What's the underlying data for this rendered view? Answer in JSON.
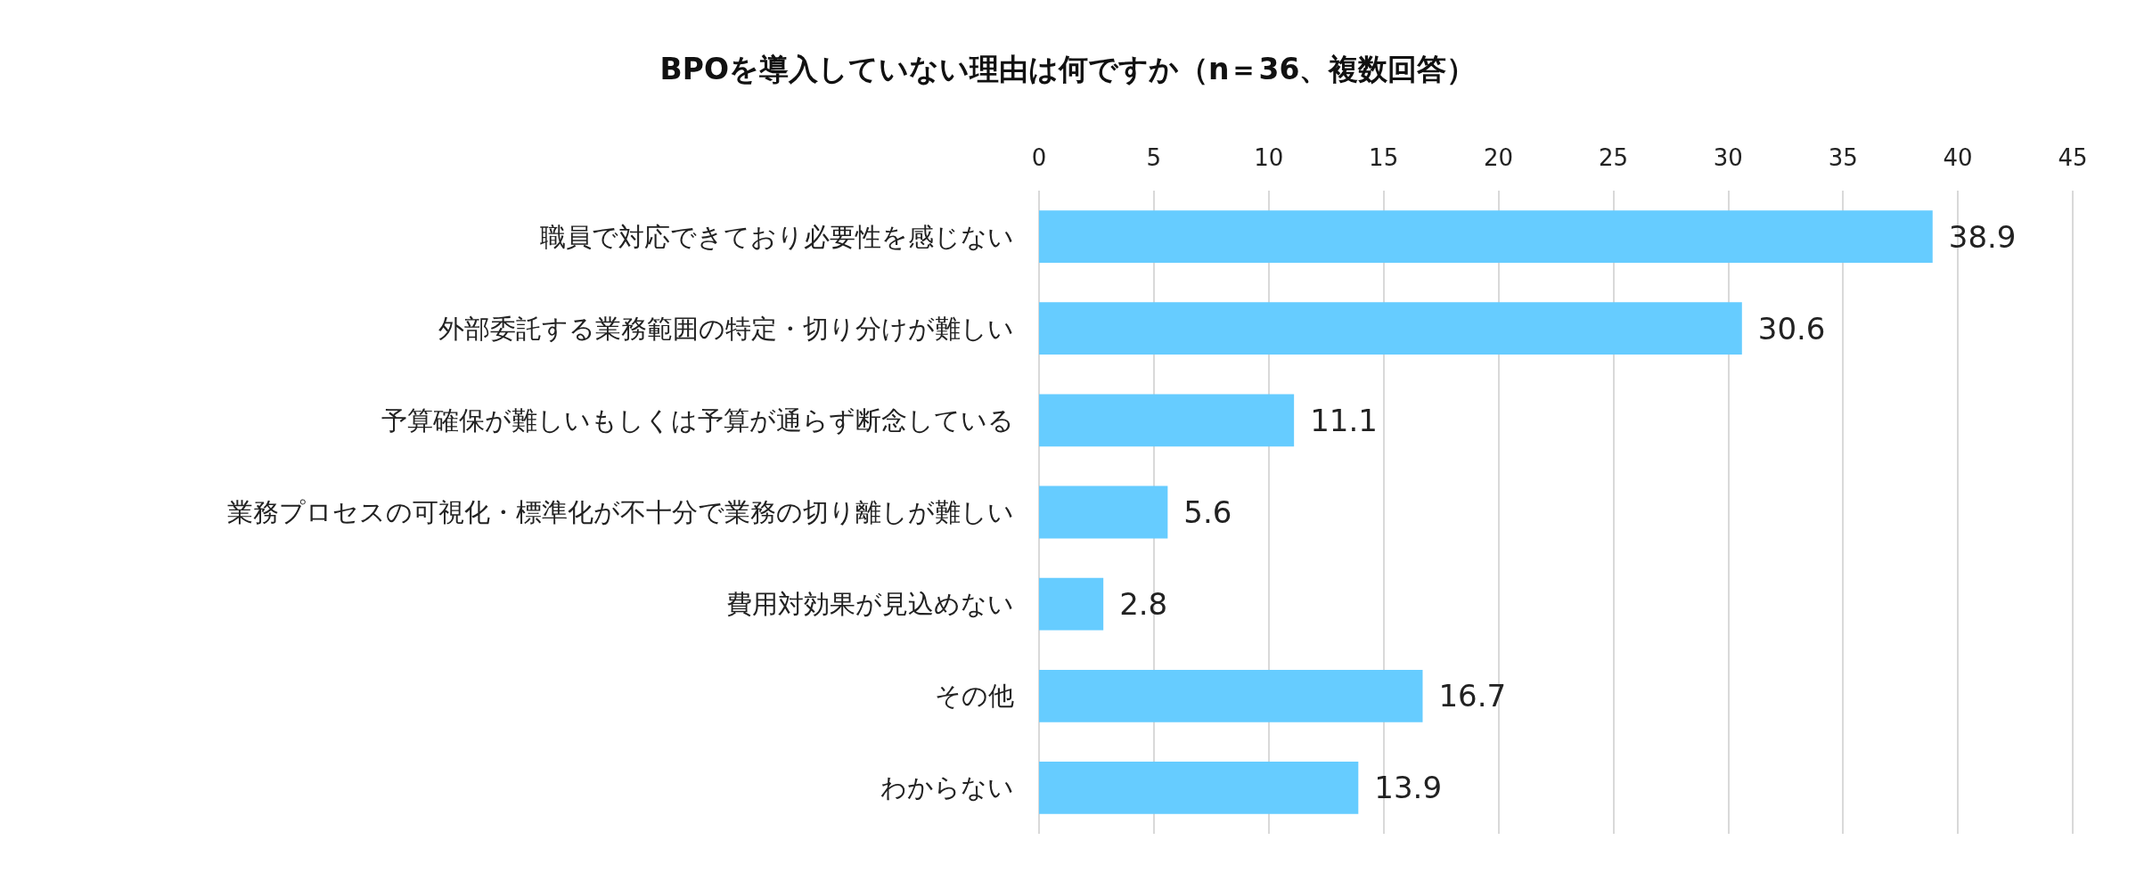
{
  "chart_data": {
    "type": "bar",
    "orientation": "horizontal",
    "title": "BPOを導入していない理由は何ですか（n＝36、複数回答）",
    "categories": [
      "職員で対応できており必要性を感じない",
      "外部委託する業務範囲の特定・切り分けが難しい",
      "予算確保が難しいもしくは予算が通らず断念している",
      "業務プロセスの可視化・標準化が不十分で業務の切り離しが難しい",
      "費用対効果が見込めない",
      "その他",
      "わからない"
    ],
    "values": [
      38.9,
      30.6,
      11.1,
      5.6,
      2.8,
      16.7,
      13.9
    ],
    "color": "#66ccff",
    "xlim": [
      0,
      45
    ],
    "xticks": [
      0,
      5,
      10,
      15,
      20,
      25,
      30,
      35,
      40,
      45
    ],
    "grid": "x",
    "data_labels": true
  }
}
